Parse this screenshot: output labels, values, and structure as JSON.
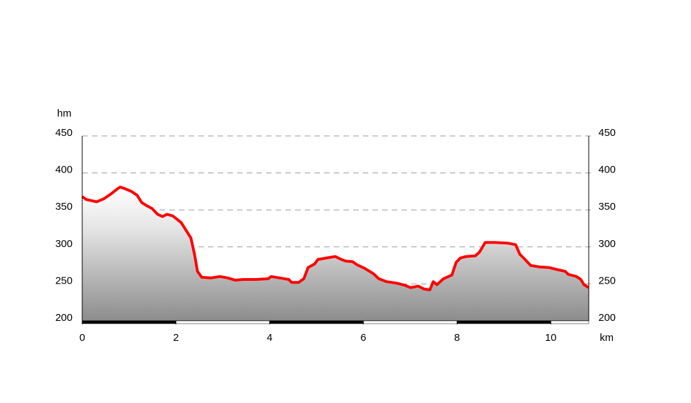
{
  "chart_data": {
    "type": "area",
    "y_label": "hm",
    "x_label": "km",
    "x": [
      0,
      0.09,
      0.31,
      0.46,
      0.6,
      0.72,
      0.81,
      0.9,
      1.05,
      1.17,
      1.27,
      1.37,
      1.49,
      1.61,
      1.71,
      1.81,
      1.93,
      2.11,
      2.2,
      2.32,
      2.4,
      2.46,
      2.55,
      2.74,
      2.94,
      3.11,
      3.26,
      3.44,
      3.7,
      3.97,
      4.03,
      4.22,
      4.41,
      4.47,
      4.62,
      4.73,
      4.82,
      4.96,
      5.03,
      5.21,
      5.4,
      5.53,
      5.62,
      5.77,
      5.86,
      6.03,
      6.21,
      6.33,
      6.5,
      6.71,
      6.89,
      7.01,
      7.17,
      7.3,
      7.42,
      7.49,
      7.57,
      7.71,
      7.89,
      7.98,
      8.07,
      8.19,
      8.39,
      8.48,
      8.6,
      8.81,
      9.09,
      9.25,
      9.34,
      9.45,
      9.57,
      9.75,
      9.97,
      10.16,
      10.31,
      10.37,
      10.55,
      10.64,
      10.71,
      10.81
    ],
    "values": [
      368,
      364,
      361,
      365,
      371,
      377,
      381,
      379,
      375,
      370,
      360,
      356,
      352,
      344,
      341,
      344,
      342,
      333,
      324,
      312,
      289,
      267,
      259,
      258,
      260,
      258,
      255,
      256,
      256,
      257,
      260,
      258,
      256,
      252,
      252,
      257,
      272,
      277,
      283,
      285,
      287,
      283,
      281,
      280,
      276,
      271,
      264,
      257,
      253,
      251,
      248,
      245,
      247,
      243,
      242,
      253,
      249,
      257,
      262,
      279,
      285,
      287,
      288,
      293,
      306,
      306,
      305,
      303,
      290,
      283,
      275,
      273,
      272,
      269,
      267,
      263,
      260,
      256,
      249,
      245
    ],
    "color": "#ff0000",
    "xlim": [
      0,
      10.81
    ],
    "xticks": [
      0,
      2,
      4,
      6,
      8,
      10
    ],
    "ylim": [
      200,
      450
    ],
    "yticks": [
      200,
      250,
      300,
      350,
      400,
      450
    ],
    "grid": true
  }
}
